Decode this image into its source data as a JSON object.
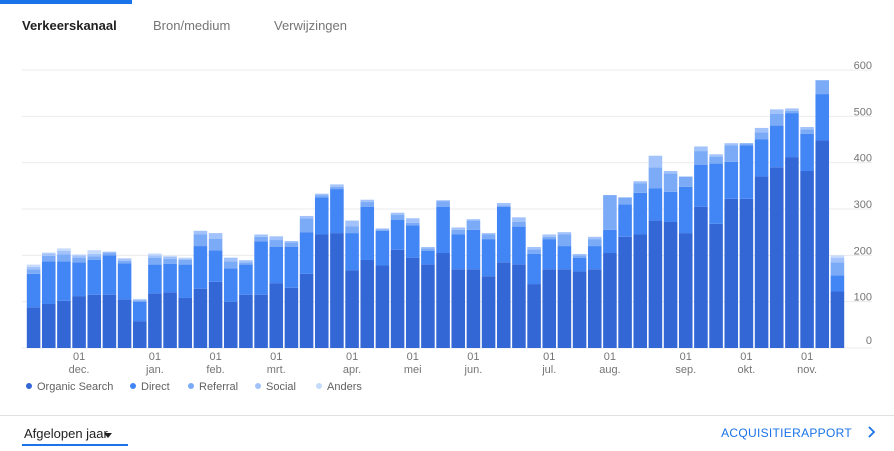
{
  "tabs": [
    {
      "label": "Verkeerskanaal",
      "active": true
    },
    {
      "label": "Bron/medium",
      "active": false
    },
    {
      "label": "Verwijzingen",
      "active": false
    }
  ],
  "chart_data": {
    "type": "bar",
    "stacked": true,
    "grid": true,
    "ylim": [
      0,
      600
    ],
    "y_ticks": [
      0,
      100,
      200,
      300,
      400,
      500,
      600
    ],
    "x_tick_labels": [
      {
        "day": "01",
        "month": "dec.",
        "index": 3
      },
      {
        "day": "01",
        "month": "jan.",
        "index": 8
      },
      {
        "day": "01",
        "month": "feb.",
        "index": 12
      },
      {
        "day": "01",
        "month": "mrt.",
        "index": 16
      },
      {
        "day": "01",
        "month": "apr.",
        "index": 21
      },
      {
        "day": "01",
        "month": "mei",
        "index": 25
      },
      {
        "day": "01",
        "month": "jun.",
        "index": 29
      },
      {
        "day": "01",
        "month": "jul.",
        "index": 34
      },
      {
        "day": "01",
        "month": "aug.",
        "index": 38
      },
      {
        "day": "01",
        "month": "sep.",
        "index": 43
      },
      {
        "day": "01",
        "month": "okt.",
        "index": 47
      },
      {
        "day": "01",
        "month": "nov.",
        "index": 51
      }
    ],
    "series": [
      {
        "name": "Organic Search",
        "color": "#3367d6",
        "values": [
          88,
          95,
          102,
          112,
          115,
          115,
          105,
          58,
          118,
          120,
          108,
          128,
          143,
          100,
          115,
          115,
          140,
          130,
          160,
          245,
          248,
          168,
          190,
          178,
          212,
          195,
          180,
          205,
          170,
          170,
          155,
          185,
          180,
          138,
          170,
          170,
          165,
          170,
          205,
          240,
          245,
          275,
          272,
          248,
          305,
          268,
          322,
          322,
          370,
          390,
          412,
          382,
          448,
          122
        ]
      },
      {
        "name": "Direct",
        "color": "#4285f4",
        "values": [
          72,
          92,
          85,
          73,
          75,
          85,
          78,
          42,
          62,
          62,
          72,
          92,
          68,
          72,
          65,
          115,
          78,
          88,
          90,
          80,
          95,
          80,
          115,
          75,
          65,
          70,
          30,
          100,
          75,
          85,
          80,
          120,
          82,
          65,
          65,
          50,
          30,
          50,
          50,
          70,
          90,
          70,
          65,
          100,
          90,
          130,
          80,
          115,
          80,
          90,
          95,
          80,
          100,
          35
        ]
      },
      {
        "name": "Referral",
        "color": "#7baaf7",
        "values": [
          10,
          12,
          15,
          10,
          8,
          5,
          5,
          3,
          15,
          10,
          10,
          25,
          25,
          15,
          5,
          10,
          15,
          10,
          30,
          5,
          5,
          15,
          10,
          3,
          10,
          5,
          5,
          12,
          10,
          20,
          10,
          3,
          10,
          10,
          5,
          25,
          5,
          15,
          75,
          15,
          20,
          45,
          40,
          22,
          30,
          15,
          35,
          5,
          15,
          25,
          5,
          10,
          30,
          28
        ]
      },
      {
        "name": "Social",
        "color": "#a1c2fa",
        "values": [
          5,
          5,
          8,
          5,
          5,
          3,
          4,
          2,
          5,
          5,
          3,
          8,
          12,
          8,
          4,
          5,
          8,
          3,
          5,
          3,
          5,
          12,
          5,
          2,
          5,
          10,
          3,
          2,
          5,
          3,
          3,
          5,
          10,
          5,
          5,
          5,
          3,
          5,
          0,
          0,
          5,
          25,
          5,
          0,
          10,
          5,
          5,
          0,
          10,
          10,
          5,
          5,
          0,
          10
        ]
      },
      {
        "name": "Anders",
        "color": "#c6dafc",
        "values": [
          5,
          2,
          5,
          2,
          8,
          0,
          2,
          1,
          4,
          2,
          2,
          0,
          0,
          0,
          1,
          0,
          0,
          0,
          0,
          0,
          0,
          0,
          0,
          0,
          0,
          0,
          0,
          0,
          0,
          0,
          0,
          0,
          0,
          0,
          0,
          0,
          0,
          0,
          0,
          0,
          0,
          0,
          0,
          0,
          0,
          0,
          0,
          0,
          0,
          0,
          0,
          0,
          0,
          5
        ]
      }
    ]
  },
  "legend_items": [
    {
      "label": "Organic Search",
      "color": "#3367d6"
    },
    {
      "label": "Direct",
      "color": "#4285f4"
    },
    {
      "label": "Referral",
      "color": "#7baaf7"
    },
    {
      "label": "Social",
      "color": "#a1c2fa"
    },
    {
      "label": "Anders",
      "color": "#c6dafc"
    }
  ],
  "footer": {
    "period_label": "Afgelopen jaar",
    "report_link": "ACQUISITIERAPPORT"
  }
}
